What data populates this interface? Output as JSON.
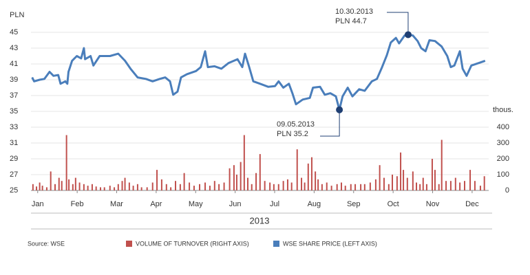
{
  "chart_data": {
    "type": "combo",
    "ylabel": "PLN",
    "y2label": "thous.",
    "xlabel": "2013",
    "source": "Source: WSE",
    "xlim": [
      0.83,
      12.42
    ],
    "xticks": [
      {
        "value": 1,
        "label": "Jan"
      },
      {
        "value": 2,
        "label": "Feb"
      },
      {
        "value": 3,
        "label": "Mar"
      },
      {
        "value": 4,
        "label": "Apr"
      },
      {
        "value": 5,
        "label": "May"
      },
      {
        "value": 6,
        "label": "Jun"
      },
      {
        "value": 7,
        "label": "Jul"
      },
      {
        "value": 8,
        "label": "Aug"
      },
      {
        "value": 9,
        "label": "Sep"
      },
      {
        "value": 10,
        "label": "Oct"
      },
      {
        "value": 11,
        "label": "Nov"
      },
      {
        "value": 12,
        "label": "Dec"
      }
    ],
    "ylim": [
      25,
      45
    ],
    "yticks": [
      25,
      27,
      29,
      31,
      33,
      35,
      37,
      39,
      41,
      43,
      45
    ],
    "y2lim": [
      0,
      1000
    ],
    "y2ticks": [
      0,
      100,
      200,
      300,
      400
    ],
    "grid": true,
    "series": [
      {
        "name": "VOLUME OF TURNOVER (RIGHT AXIS)",
        "type": "bar",
        "axis": "y2",
        "color": "#c0504d",
        "x": [
          0.88,
          0.97,
          1.05,
          1.12,
          1.23,
          1.33,
          1.44,
          1.54,
          1.61,
          1.73,
          1.79,
          1.89,
          1.96,
          2.06,
          2.17,
          2.27,
          2.38,
          2.48,
          2.59,
          2.69,
          2.83,
          2.94,
          3.04,
          3.14,
          3.21,
          3.32,
          3.42,
          3.53,
          3.63,
          3.77,
          3.91,
          4.02,
          4.14,
          4.26,
          4.37,
          4.49,
          4.61,
          4.71,
          4.84,
          4.96,
          5.1,
          5.24,
          5.36,
          5.48,
          5.59,
          5.72,
          5.86,
          5.97,
          6.04,
          6.14,
          6.23,
          6.32,
          6.42,
          6.53,
          6.63,
          6.75,
          6.88,
          6.98,
          7.1,
          7.22,
          7.33,
          7.43,
          7.57,
          7.68,
          7.76,
          7.85,
          7.94,
          8.03,
          8.1,
          8.2,
          8.32,
          8.44,
          8.58,
          8.69,
          8.79,
          8.93,
          9.04,
          9.18,
          9.28,
          9.42,
          9.56,
          9.66,
          9.77,
          9.89,
          9.98,
          10.1,
          10.19,
          10.26,
          10.36,
          10.5,
          10.59,
          10.68,
          10.76,
          10.85,
          10.99,
          11.06,
          11.16,
          11.23,
          11.34,
          11.46,
          11.58,
          11.69,
          11.81,
          11.95,
          12.07,
          12.21,
          12.31
        ],
        "values": [
          40,
          25,
          50,
          30,
          20,
          120,
          40,
          80,
          60,
          350,
          70,
          40,
          80,
          50,
          40,
          30,
          40,
          25,
          20,
          20,
          30,
          20,
          40,
          60,
          80,
          50,
          30,
          40,
          20,
          20,
          50,
          130,
          70,
          40,
          20,
          60,
          40,
          110,
          50,
          30,
          40,
          50,
          30,
          60,
          40,
          50,
          140,
          160,
          100,
          180,
          350,
          80,
          40,
          110,
          230,
          60,
          50,
          40,
          40,
          60,
          70,
          50,
          260,
          80,
          50,
          170,
          210,
          120,
          70,
          40,
          50,
          30,
          40,
          50,
          30,
          40,
          40,
          40,
          40,
          50,
          70,
          160,
          80,
          40,
          100,
          90,
          240,
          130,
          80,
          120,
          50,
          40,
          80,
          40,
          200,
          130,
          40,
          320,
          60,
          60,
          80,
          50,
          60,
          130,
          60,
          30,
          90
        ]
      },
      {
        "name": "WSE SHARE PRICE (LEFT AXIS)",
        "type": "line",
        "axis": "y",
        "color": "#4a7ebb",
        "x": [
          0.86,
          0.91,
          1.05,
          1.17,
          1.3,
          1.4,
          1.52,
          1.58,
          1.7,
          1.75,
          1.78,
          1.87,
          1.99,
          2.1,
          2.17,
          2.2,
          2.34,
          2.41,
          2.57,
          2.83,
          3.04,
          3.21,
          3.35,
          3.53,
          3.74,
          3.91,
          4.09,
          4.23,
          4.35,
          4.43,
          4.54,
          4.63,
          4.78,
          5.01,
          5.13,
          5.24,
          5.31,
          5.48,
          5.65,
          5.83,
          6.06,
          6.18,
          6.25,
          6.35,
          6.46,
          6.63,
          6.84,
          7.01,
          7.1,
          7.22,
          7.36,
          7.45,
          7.54,
          7.71,
          7.89,
          7.97,
          8.15,
          8.27,
          8.41,
          8.55,
          8.64,
          8.72,
          8.85,
          8.97,
          9.14,
          9.28,
          9.46,
          9.59,
          9.72,
          9.84,
          9.94,
          10.07,
          10.15,
          10.29,
          10.38,
          10.5,
          10.62,
          10.71,
          10.82,
          10.92,
          11.06,
          11.23,
          11.37,
          11.46,
          11.55,
          11.69,
          11.76,
          11.86,
          11.98,
          12.16,
          12.33
        ],
        "values": [
          39.3,
          38.8,
          39.0,
          39.1,
          40.0,
          39.5,
          39.6,
          38.5,
          38.8,
          38.5,
          40.0,
          41.4,
          42.0,
          41.7,
          43.0,
          41.6,
          42.0,
          40.8,
          42.0,
          42.0,
          42.3,
          41.4,
          40.4,
          39.3,
          39.1,
          38.8,
          39.1,
          39.3,
          38.8,
          37.1,
          37.5,
          39.3,
          39.7,
          40.1,
          40.6,
          42.6,
          40.6,
          40.7,
          40.4,
          41.1,
          41.6,
          40.6,
          42.3,
          40.7,
          38.8,
          38.5,
          38.1,
          38.2,
          38.8,
          38.0,
          38.5,
          37.3,
          35.9,
          36.5,
          36.7,
          38.0,
          38.1,
          37.1,
          37.3,
          36.9,
          35.2,
          36.9,
          38.0,
          36.9,
          37.8,
          37.6,
          38.8,
          39.1,
          40.6,
          42.1,
          43.7,
          44.3,
          43.6,
          44.6,
          44.7,
          44.6,
          43.9,
          43.0,
          42.6,
          44.0,
          43.9,
          43.2,
          42.0,
          40.6,
          40.8,
          42.6,
          40.4,
          39.5,
          40.8,
          41.1,
          41.4
        ]
      }
    ],
    "annotations": [
      {
        "date": "10.30.2013",
        "label": "PLN 44.7",
        "x": 10.38,
        "y": 44.7
      },
      {
        "date": "09.05.2013",
        "label": "PLN 35.2",
        "x": 8.64,
        "y": 35.2
      }
    ]
  }
}
